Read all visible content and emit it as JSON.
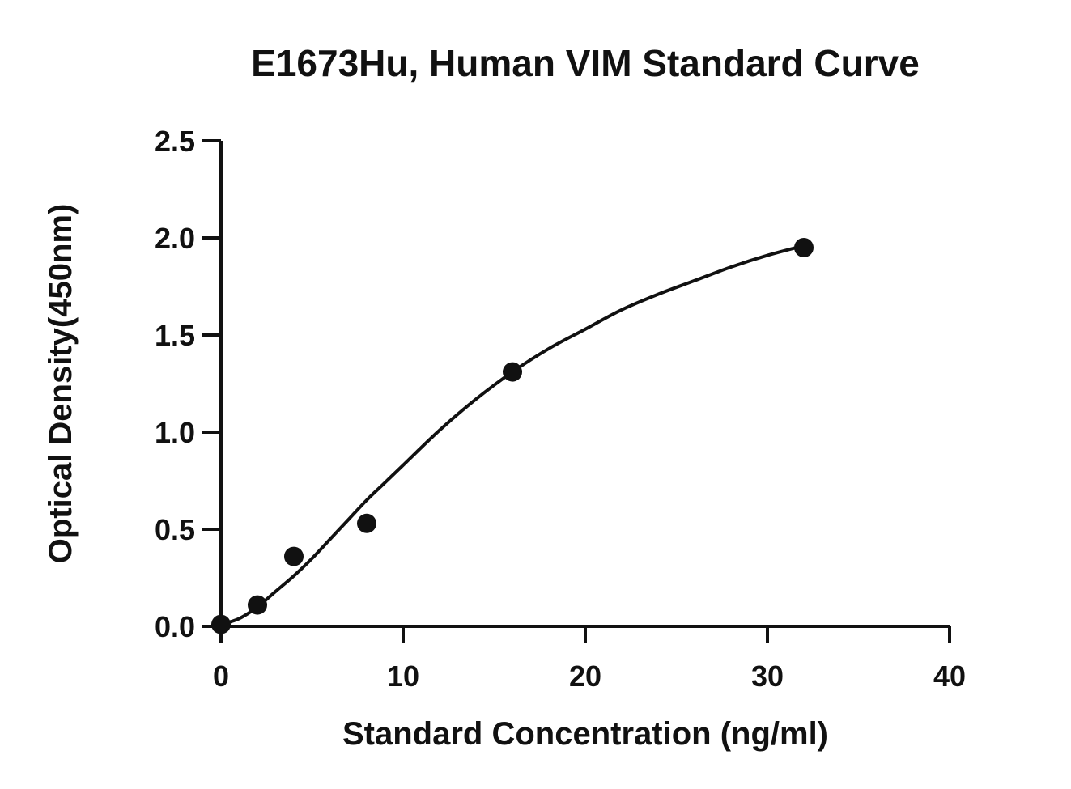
{
  "chart_data": {
    "type": "scatter",
    "title": "E1673Hu, Human VIM Standard Curve",
    "xlabel": "Standard Concentration (ng/ml)",
    "ylabel": "Optical Density(450nm)",
    "xlim": [
      0,
      40
    ],
    "ylim": [
      0,
      2.5
    ],
    "x_ticks": [
      "0",
      "10",
      "20",
      "30",
      "40"
    ],
    "y_ticks": [
      "0.0",
      "0.5",
      "1.0",
      "1.5",
      "2.0",
      "2.5"
    ],
    "grid": false,
    "legend": "none",
    "series": [
      {
        "x": [
          0,
          2,
          4,
          8,
          16,
          32
        ],
        "y": [
          0.01,
          0.11,
          0.36,
          0.53,
          1.31,
          1.95
        ],
        "marker": "circle",
        "color": "#111111"
      }
    ],
    "fit_curve": {
      "type": "smooth",
      "color": "#111111",
      "x": [
        0,
        1,
        2,
        3,
        4,
        5,
        6,
        7,
        8,
        9,
        10,
        12,
        14,
        16,
        18,
        20,
        22,
        24,
        26,
        28,
        30,
        32
      ],
      "y": [
        0.01,
        0.04,
        0.1,
        0.18,
        0.26,
        0.35,
        0.45,
        0.55,
        0.65,
        0.74,
        0.83,
        1.01,
        1.17,
        1.31,
        1.43,
        1.53,
        1.63,
        1.71,
        1.78,
        1.85,
        1.91,
        1.96
      ]
    }
  }
}
